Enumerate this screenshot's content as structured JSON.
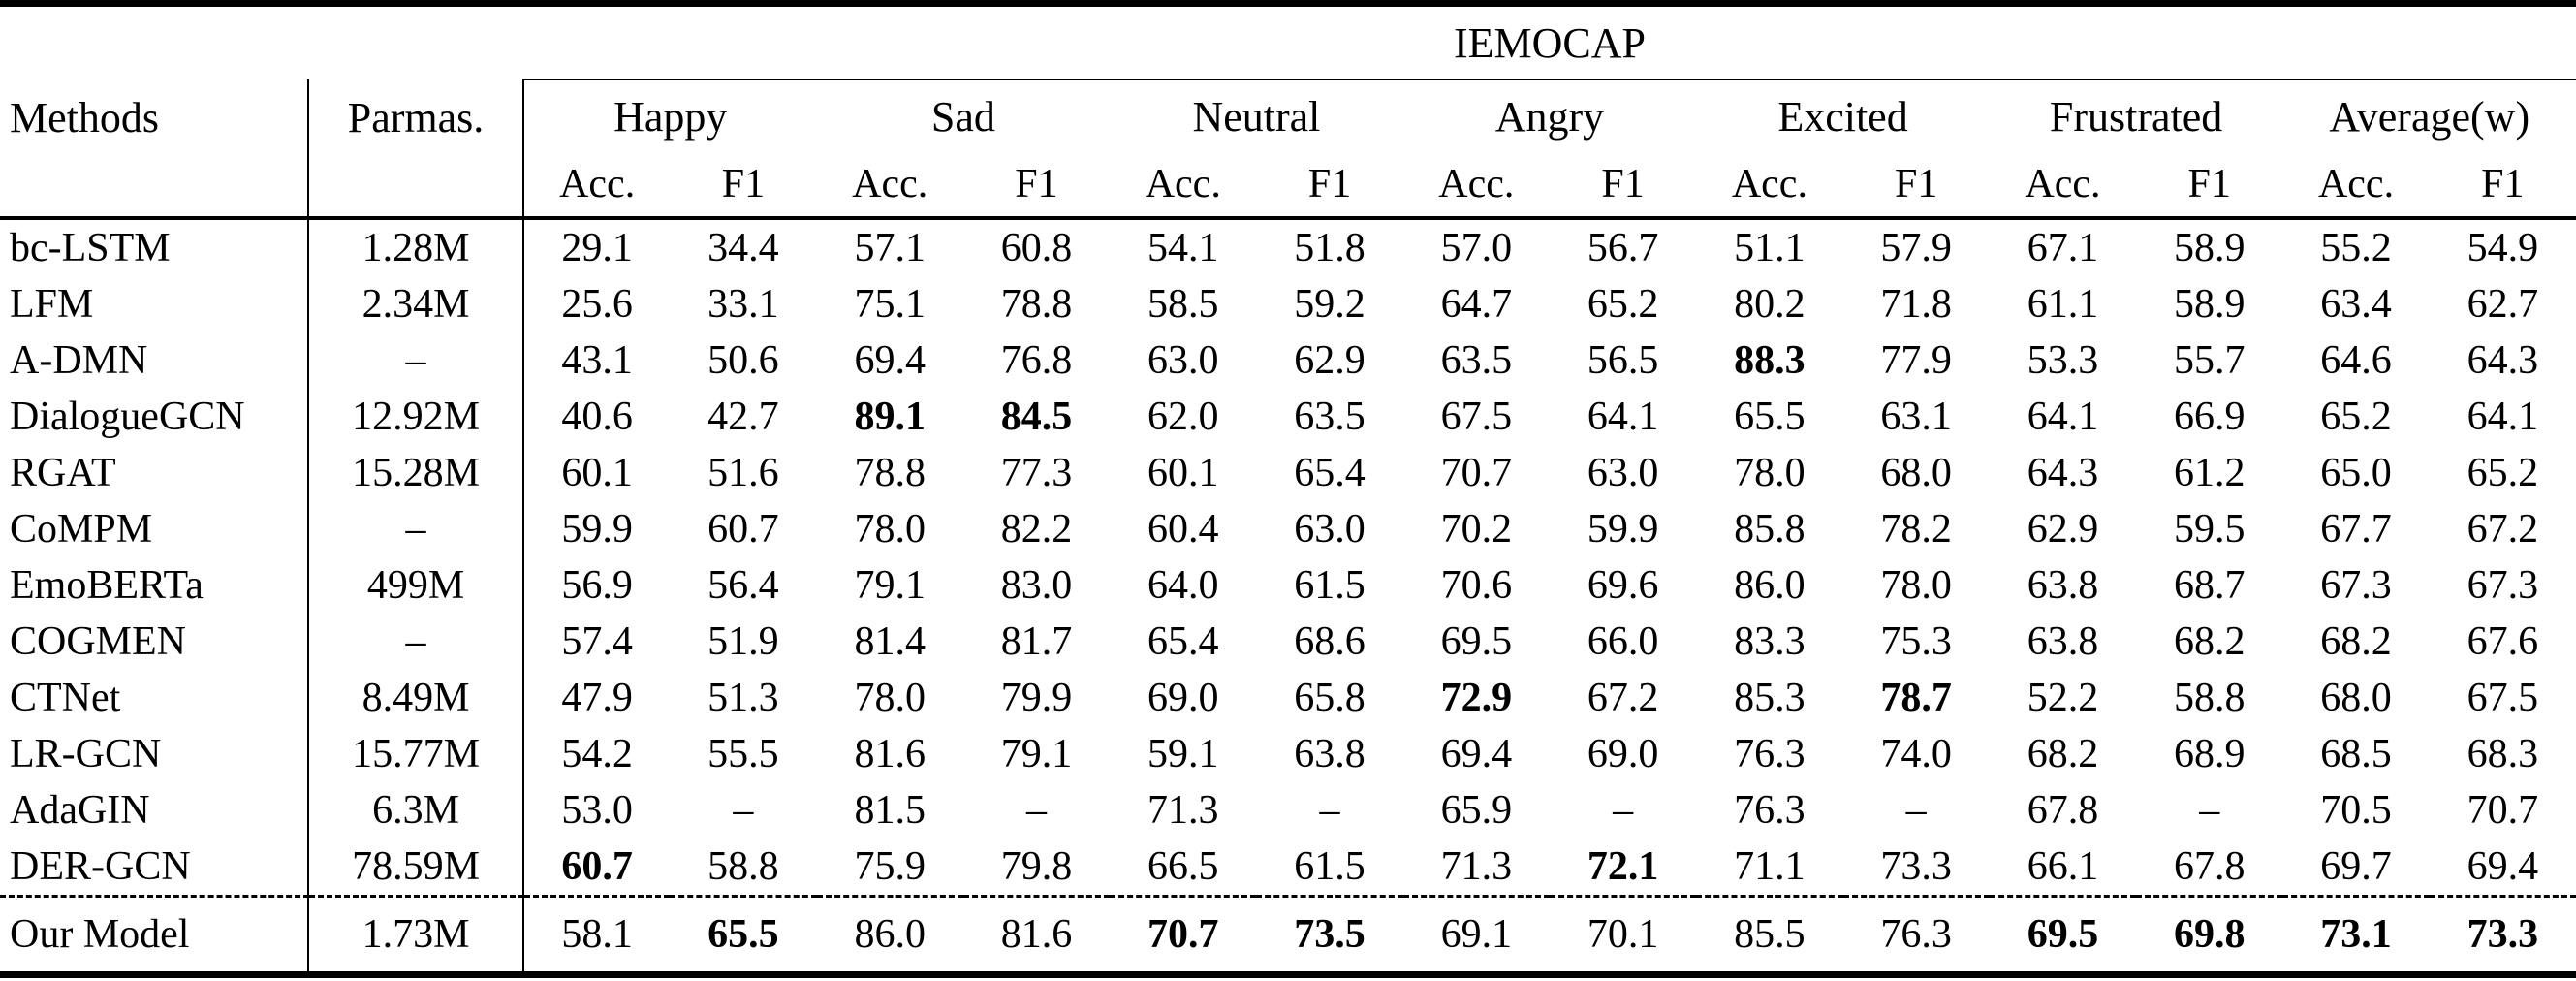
{
  "page": {
    "background": "#ffffff",
    "text_color": "#000000"
  },
  "table": {
    "dataset_header": "IEMOCAP",
    "methods_header": "Methods",
    "params_header": "Parmas.",
    "metric_headers": {
      "acc": "Acc.",
      "f1": "F1"
    },
    "emotions": [
      "Happy",
      "Sad",
      "Neutral",
      "Angry",
      "Excited",
      "Frustrated",
      "Average(w)"
    ],
    "rows": [
      {
        "method": "bc-LSTM",
        "params": "1.28M",
        "values": [
          "29.1",
          "34.4",
          "57.1",
          "60.8",
          "54.1",
          "51.8",
          "57.0",
          "56.7",
          "51.1",
          "57.9",
          "67.1",
          "58.9",
          "55.2",
          "54.9"
        ],
        "bold_indices": [],
        "separator_above": false
      },
      {
        "method": "LFM",
        "params": "2.34M",
        "values": [
          "25.6",
          "33.1",
          "75.1",
          "78.8",
          "58.5",
          "59.2",
          "64.7",
          "65.2",
          "80.2",
          "71.8",
          "61.1",
          "58.9",
          "63.4",
          "62.7"
        ],
        "bold_indices": [],
        "separator_above": false
      },
      {
        "method": "A-DMN",
        "params": "–",
        "values": [
          "43.1",
          "50.6",
          "69.4",
          "76.8",
          "63.0",
          "62.9",
          "63.5",
          "56.5",
          "88.3",
          "77.9",
          "53.3",
          "55.7",
          "64.6",
          "64.3"
        ],
        "bold_indices": [
          8
        ],
        "separator_above": false
      },
      {
        "method": "DialogueGCN",
        "params": "12.92M",
        "values": [
          "40.6",
          "42.7",
          "89.1",
          "84.5",
          "62.0",
          "63.5",
          "67.5",
          "64.1",
          "65.5",
          "63.1",
          "64.1",
          "66.9",
          "65.2",
          "64.1"
        ],
        "bold_indices": [
          2,
          3
        ],
        "separator_above": false
      },
      {
        "method": "RGAT",
        "params": "15.28M",
        "values": [
          "60.1",
          "51.6",
          "78.8",
          "77.3",
          "60.1",
          "65.4",
          "70.7",
          "63.0",
          "78.0",
          "68.0",
          "64.3",
          "61.2",
          "65.0",
          "65.2"
        ],
        "bold_indices": [],
        "separator_above": false
      },
      {
        "method": "CoMPM",
        "params": "–",
        "values": [
          "59.9",
          "60.7",
          "78.0",
          "82.2",
          "60.4",
          "63.0",
          "70.2",
          "59.9",
          "85.8",
          "78.2",
          "62.9",
          "59.5",
          "67.7",
          "67.2"
        ],
        "bold_indices": [],
        "separator_above": false
      },
      {
        "method": "EmoBERTa",
        "params": "499M",
        "values": [
          "56.9",
          "56.4",
          "79.1",
          "83.0",
          "64.0",
          "61.5",
          "70.6",
          "69.6",
          "86.0",
          "78.0",
          "63.8",
          "68.7",
          "67.3",
          "67.3"
        ],
        "bold_indices": [],
        "separator_above": false
      },
      {
        "method": "COGMEN",
        "params": "–",
        "values": [
          "57.4",
          "51.9",
          "81.4",
          "81.7",
          "65.4",
          "68.6",
          "69.5",
          "66.0",
          "83.3",
          "75.3",
          "63.8",
          "68.2",
          "68.2",
          "67.6"
        ],
        "bold_indices": [],
        "separator_above": false
      },
      {
        "method": "CTNet",
        "params": "8.49M",
        "values": [
          "47.9",
          "51.3",
          "78.0",
          "79.9",
          "69.0",
          "65.8",
          "72.9",
          "67.2",
          "85.3",
          "78.7",
          "52.2",
          "58.8",
          "68.0",
          "67.5"
        ],
        "bold_indices": [
          6,
          9
        ],
        "separator_above": false
      },
      {
        "method": "LR-GCN",
        "params": "15.77M",
        "values": [
          "54.2",
          "55.5",
          "81.6",
          "79.1",
          "59.1",
          "63.8",
          "69.4",
          "69.0",
          "76.3",
          "74.0",
          "68.2",
          "68.9",
          "68.5",
          "68.3"
        ],
        "bold_indices": [],
        "separator_above": false
      },
      {
        "method": "AdaGIN",
        "params": "6.3M",
        "values": [
          "53.0",
          "–",
          "81.5",
          "–",
          "71.3",
          "–",
          "65.9",
          "–",
          "76.3",
          "–",
          "67.8",
          "–",
          "70.5",
          "70.7"
        ],
        "bold_indices": [],
        "separator_above": false
      },
      {
        "method": "DER-GCN",
        "params": "78.59M",
        "values": [
          "60.7",
          "58.8",
          "75.9",
          "79.8",
          "66.5",
          "61.5",
          "71.3",
          "72.1",
          "71.1",
          "73.3",
          "66.1",
          "67.8",
          "69.7",
          "69.4"
        ],
        "bold_indices": [
          0,
          7
        ],
        "separator_above": false
      },
      {
        "method": "Our Model",
        "params": "1.73M",
        "values": [
          "58.1",
          "65.5",
          "86.0",
          "81.6",
          "70.7",
          "73.5",
          "69.1",
          "70.1",
          "85.5",
          "76.3",
          "69.5",
          "69.8",
          "73.1",
          "73.3"
        ],
        "bold_indices": [
          1,
          4,
          5,
          10,
          11,
          12,
          13
        ],
        "separator_above": true
      }
    ]
  }
}
